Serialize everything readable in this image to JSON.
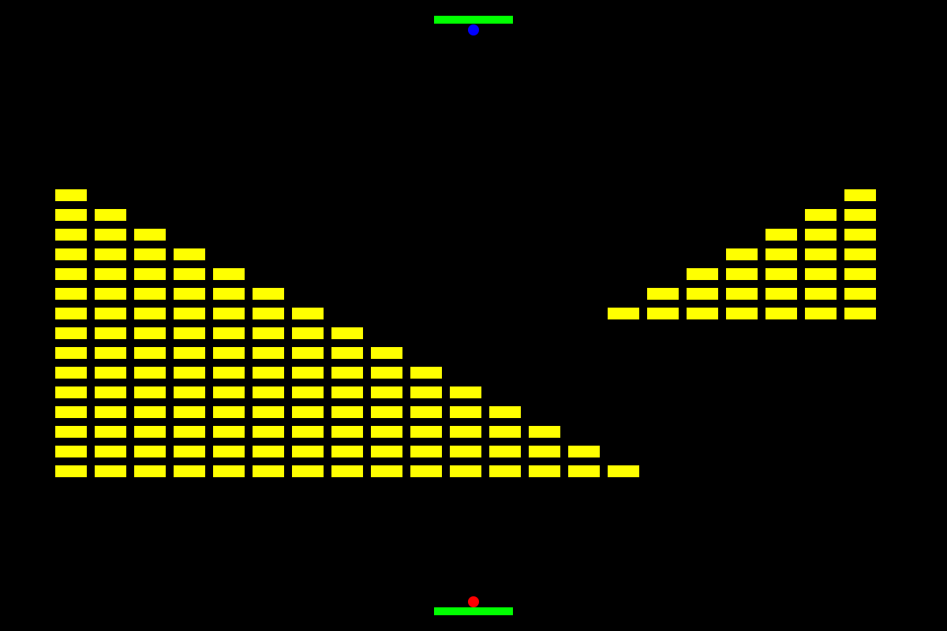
{
  "colors": {
    "background": "#000000",
    "brick": "#ffff00",
    "paddle": "#00ff00",
    "ball_top": "#0000ff",
    "ball_bottom": "#ff0000"
  },
  "game": {
    "players": 2,
    "paddles": [
      {
        "id": "top",
        "color": "#00ff00"
      },
      {
        "id": "bottom",
        "color": "#00ff00"
      }
    ],
    "balls": [
      {
        "id": "top",
        "color": "#0000ff"
      },
      {
        "id": "bottom",
        "color": "#ff0000"
      }
    ],
    "brick_formations": [
      {
        "name": "left-staircase",
        "rows": 15,
        "bricks_per_row": [
          1,
          2,
          3,
          4,
          5,
          6,
          7,
          8,
          9,
          10,
          11,
          12,
          13,
          14,
          15
        ]
      },
      {
        "name": "right-staircase",
        "rows": 7,
        "bricks_per_row": [
          1,
          2,
          3,
          4,
          5,
          6,
          7
        ]
      }
    ],
    "total_bricks": 148
  }
}
